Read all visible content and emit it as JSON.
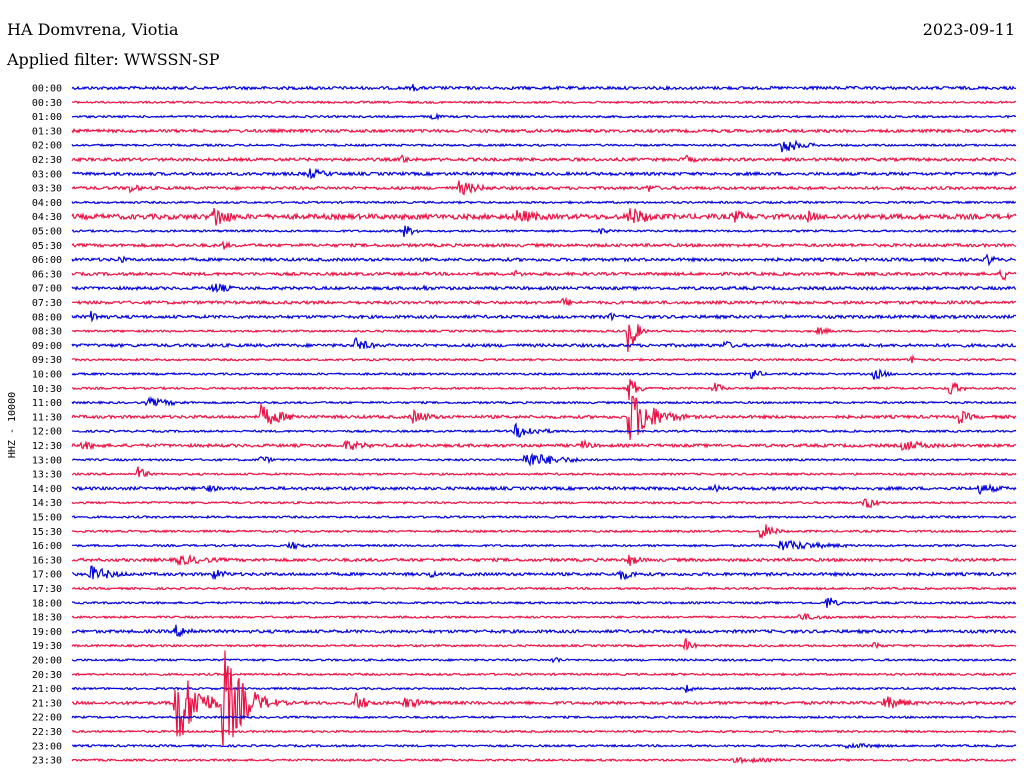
{
  "header": {
    "station": "HA Domvrena, Viotia",
    "date": "2023-09-11",
    "filter": "Applied filter: WWSSN-SP"
  },
  "chart_data": {
    "type": "line",
    "title": "HA Domvrena, Viotia",
    "subtitle": "Applied filter: WWSSN-SP",
    "date": "2023-09-11",
    "ylabel": "HHZ - 10000",
    "xlabel": "",
    "colors": [
      "#0000dd",
      "#ee1144"
    ],
    "row_labels": [
      "00:00",
      "00:30",
      "01:00",
      "01:30",
      "02:00",
      "02:30",
      "03:00",
      "03:30",
      "04:00",
      "04:30",
      "05:00",
      "05:30",
      "06:00",
      "06:30",
      "07:00",
      "07:30",
      "08:00",
      "08:30",
      "09:00",
      "09:30",
      "10:00",
      "10:30",
      "11:00",
      "11:30",
      "12:00",
      "12:30",
      "13:00",
      "13:30",
      "14:00",
      "14:30",
      "15:00",
      "15:30",
      "16:00",
      "16:30",
      "17:00",
      "17:30",
      "18:00",
      "18:30",
      "19:00",
      "19:30",
      "20:00",
      "20:30",
      "21:00",
      "21:30",
      "22:00",
      "22:30",
      "23:00",
      "23:30"
    ],
    "noise": [
      3,
      2,
      2,
      3,
      2,
      3,
      3,
      3,
      2,
      5,
      2,
      3,
      3,
      3,
      3,
      3,
      3,
      2,
      3,
      2,
      2,
      2,
      2,
      3,
      2,
      3,
      2,
      2,
      3,
      2,
      2,
      2,
      2,
      3,
      3,
      2,
      2,
      2,
      3,
      2,
      2,
      2,
      2,
      3,
      2,
      2,
      2,
      2
    ],
    "events": [
      {
        "row": 0,
        "pos": 0.36,
        "amp": 5,
        "len": 0.01
      },
      {
        "row": 2,
        "pos": 0.38,
        "amp": 5,
        "len": 0.01
      },
      {
        "row": 4,
        "pos": 0.75,
        "amp": 10,
        "len": 0.025
      },
      {
        "row": 5,
        "pos": 0.35,
        "amp": 6,
        "len": 0.01
      },
      {
        "row": 5,
        "pos": 0.65,
        "amp": 5,
        "len": 0.015
      },
      {
        "row": 6,
        "pos": 0.25,
        "amp": 6,
        "len": 0.03
      },
      {
        "row": 7,
        "pos": 0.06,
        "amp": 6,
        "len": 0.015
      },
      {
        "row": 7,
        "pos": 0.41,
        "amp": 8,
        "len": 0.03
      },
      {
        "row": 7,
        "pos": 0.61,
        "amp": 5,
        "len": 0.015
      },
      {
        "row": 9,
        "pos": 0.15,
        "amp": 14,
        "len": 0.02
      },
      {
        "row": 9,
        "pos": 0.47,
        "amp": 8,
        "len": 0.04
      },
      {
        "row": 9,
        "pos": 0.59,
        "amp": 11,
        "len": 0.03
      },
      {
        "row": 9,
        "pos": 0.7,
        "amp": 7,
        "len": 0.03
      },
      {
        "row": 9,
        "pos": 0.78,
        "amp": 7,
        "len": 0.015
      },
      {
        "row": 10,
        "pos": 0.35,
        "amp": 8,
        "len": 0.015
      },
      {
        "row": 10,
        "pos": 0.56,
        "amp": 5,
        "len": 0.01
      },
      {
        "row": 11,
        "pos": 0.16,
        "amp": 5,
        "len": 0.01
      },
      {
        "row": 12,
        "pos": 0.05,
        "amp": 5,
        "len": 0.01
      },
      {
        "row": 12,
        "pos": 0.97,
        "amp": 7,
        "len": 0.01
      },
      {
        "row": 13,
        "pos": 0.47,
        "amp": 5,
        "len": 0.01
      },
      {
        "row": 13,
        "pos": 0.985,
        "amp": 9,
        "len": 0.01
      },
      {
        "row": 14,
        "pos": 0.15,
        "amp": 7,
        "len": 0.02
      },
      {
        "row": 14,
        "pos": 0.37,
        "amp": 5,
        "len": 0.01
      },
      {
        "row": 15,
        "pos": 0.52,
        "amp": 5,
        "len": 0.02
      },
      {
        "row": 16,
        "pos": 0.02,
        "amp": 6,
        "len": 0.02
      },
      {
        "row": 16,
        "pos": 0.57,
        "amp": 5,
        "len": 0.01
      },
      {
        "row": 17,
        "pos": 0.59,
        "amp": 32,
        "len": 0.008
      },
      {
        "row": 17,
        "pos": 0.79,
        "amp": 4,
        "len": 0.02
      },
      {
        "row": 18,
        "pos": 0.3,
        "amp": 8,
        "len": 0.02
      },
      {
        "row": 18,
        "pos": 0.69,
        "amp": 6,
        "len": 0.015
      },
      {
        "row": 19,
        "pos": 0.89,
        "amp": 5,
        "len": 0.01
      },
      {
        "row": 20,
        "pos": 0.72,
        "amp": 8,
        "len": 0.01
      },
      {
        "row": 20,
        "pos": 0.85,
        "amp": 7,
        "len": 0.015
      },
      {
        "row": 21,
        "pos": 0.59,
        "amp": 14,
        "len": 0.012
      },
      {
        "row": 21,
        "pos": 0.68,
        "amp": 8,
        "len": 0.01
      },
      {
        "row": 21,
        "pos": 0.93,
        "amp": 10,
        "len": 0.012
      },
      {
        "row": 22,
        "pos": 0.08,
        "amp": 5,
        "len": 0.04
      },
      {
        "row": 23,
        "pos": 0.2,
        "amp": 12,
        "len": 0.03
      },
      {
        "row": 23,
        "pos": 0.36,
        "amp": 8,
        "len": 0.025
      },
      {
        "row": 23,
        "pos": 0.59,
        "amp": 30,
        "len": 0.03
      },
      {
        "row": 23,
        "pos": 0.94,
        "amp": 8,
        "len": 0.015
      },
      {
        "row": 24,
        "pos": 0.47,
        "amp": 8,
        "len": 0.03
      },
      {
        "row": 25,
        "pos": 0.01,
        "amp": 5,
        "len": 0.03
      },
      {
        "row": 25,
        "pos": 0.29,
        "amp": 6,
        "len": 0.03
      },
      {
        "row": 25,
        "pos": 0.54,
        "amp": 6,
        "len": 0.015
      },
      {
        "row": 25,
        "pos": 0.88,
        "amp": 6,
        "len": 0.04
      },
      {
        "row": 26,
        "pos": 0.48,
        "amp": 9,
        "len": 0.045
      },
      {
        "row": 26,
        "pos": 0.2,
        "amp": 5,
        "len": 0.015
      },
      {
        "row": 27,
        "pos": 0.07,
        "amp": 9,
        "len": 0.01
      },
      {
        "row": 28,
        "pos": 0.14,
        "amp": 5,
        "len": 0.02
      },
      {
        "row": 28,
        "pos": 0.68,
        "amp": 5,
        "len": 0.01
      },
      {
        "row": 28,
        "pos": 0.96,
        "amp": 6,
        "len": 0.03
      },
      {
        "row": 29,
        "pos": 0.84,
        "amp": 8,
        "len": 0.015
      },
      {
        "row": 31,
        "pos": 0.73,
        "amp": 11,
        "len": 0.015
      },
      {
        "row": 32,
        "pos": 0.23,
        "amp": 5,
        "len": 0.02
      },
      {
        "row": 32,
        "pos": 0.75,
        "amp": 6,
        "len": 0.06
      },
      {
        "row": 33,
        "pos": 0.11,
        "amp": 6,
        "len": 0.05
      },
      {
        "row": 33,
        "pos": 0.59,
        "amp": 7,
        "len": 0.015
      },
      {
        "row": 34,
        "pos": 0.02,
        "amp": 9,
        "len": 0.03
      },
      {
        "row": 34,
        "pos": 0.15,
        "amp": 6,
        "len": 0.02
      },
      {
        "row": 34,
        "pos": 0.38,
        "amp": 4,
        "len": 0.01
      },
      {
        "row": 34,
        "pos": 0.58,
        "amp": 7,
        "len": 0.02
      },
      {
        "row": 36,
        "pos": 0.8,
        "amp": 9,
        "len": 0.01
      },
      {
        "row": 37,
        "pos": 0.77,
        "amp": 4,
        "len": 0.04
      },
      {
        "row": 38,
        "pos": 0.11,
        "amp": 7,
        "len": 0.025
      },
      {
        "row": 39,
        "pos": 0.65,
        "amp": 8,
        "len": 0.01
      },
      {
        "row": 39,
        "pos": 0.85,
        "amp": 5,
        "len": 0.01
      },
      {
        "row": 40,
        "pos": 0.51,
        "amp": 5,
        "len": 0.01
      },
      {
        "row": 42,
        "pos": 0.65,
        "amp": 5,
        "len": 0.01
      },
      {
        "row": 43,
        "pos": 0.11,
        "amp": 50,
        "len": 0.025
      },
      {
        "row": 43,
        "pos": 0.16,
        "amp": 60,
        "len": 0.025
      },
      {
        "row": 43,
        "pos": 0.3,
        "amp": 12,
        "len": 0.015
      },
      {
        "row": 43,
        "pos": 0.35,
        "amp": 7,
        "len": 0.03
      },
      {
        "row": 43,
        "pos": 0.86,
        "amp": 8,
        "len": 0.03
      },
      {
        "row": 46,
        "pos": 0.82,
        "amp": 3,
        "len": 0.06
      },
      {
        "row": 47,
        "pos": 0.7,
        "amp": 3,
        "len": 0.08
      }
    ]
  }
}
